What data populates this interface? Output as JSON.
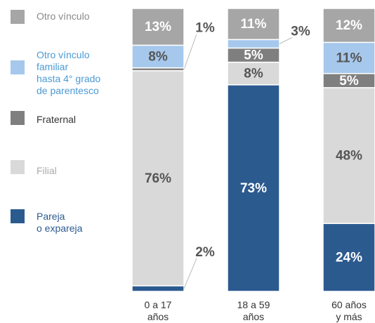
{
  "chart_data": {
    "type": "stacked_bar",
    "categories": [
      "0 a 17\naños",
      "18 a 59\naños",
      "60 años\ny más"
    ],
    "ylim": [
      0,
      100
    ],
    "series": [
      {
        "name": "Pareja\no expareja",
        "color": "#2b5a8f",
        "values": [
          2,
          73,
          24
        ],
        "value_labels": [
          "2%",
          "73%",
          "24%"
        ]
      },
      {
        "name": "Filial",
        "color": "#d9d9d9",
        "values": [
          76,
          8,
          48
        ],
        "value_labels": [
          "76%",
          "8%",
          "48%"
        ]
      },
      {
        "name": "Fraternal",
        "color": "#7f7f7f",
        "values": [
          1,
          5,
          5
        ],
        "value_labels": [
          "1%",
          "5%",
          "5%"
        ]
      },
      {
        "name": "Otro vínculo\nfamiliar\nhasta 4° grado\nde parentesco",
        "color": "#a6c8ec",
        "values": [
          8,
          3,
          11
        ],
        "value_labels": [
          "8%",
          "3%",
          "11%"
        ]
      },
      {
        "name": "Otro vínculo",
        "color": "#a6a6a6",
        "values": [
          13,
          11,
          12
        ],
        "value_labels": [
          "13%",
          "11%",
          "12%"
        ]
      }
    ]
  }
}
